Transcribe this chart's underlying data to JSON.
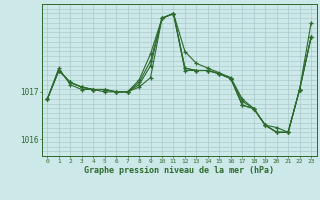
{
  "bg_color": "#cce8e8",
  "grid_color": "#aacccc",
  "line_color": "#2d6a2d",
  "marker_color": "#2d6a2d",
  "xlabel": "Graphe pression niveau de la mer (hPa)",
  "xlabel_color": "#2d6a2d",
  "tick_color": "#2d6a2d",
  "axis_color": "#2d6a2d",
  "xmin": -0.5,
  "xmax": 23.5,
  "ymin": 1015.65,
  "ymax": 1018.85,
  "yticks": [
    1016,
    1017
  ],
  "xticks": [
    0,
    1,
    2,
    3,
    4,
    5,
    6,
    7,
    8,
    9,
    10,
    11,
    12,
    13,
    14,
    15,
    16,
    17,
    18,
    19,
    20,
    21,
    22,
    23
  ],
  "lines": [
    {
      "x": [
        0,
        1,
        2,
        3,
        4,
        5,
        6,
        7,
        8,
        9,
        10,
        11,
        12,
        13,
        14,
        15,
        16,
        17,
        18,
        19,
        20,
        21,
        22,
        23
      ],
      "y": [
        1016.85,
        1017.45,
        1017.2,
        1017.1,
        1017.05,
        1017.05,
        1017.0,
        1017.0,
        1017.15,
        1017.55,
        1018.55,
        1018.65,
        1017.5,
        1017.45,
        1017.45,
        1017.38,
        1017.28,
        1016.72,
        1016.65,
        1016.3,
        1016.15,
        1016.15,
        1017.05,
        1018.15
      ]
    },
    {
      "x": [
        0,
        1,
        2,
        3,
        4,
        5,
        6,
        7,
        8,
        9,
        10,
        11,
        12,
        13,
        14,
        15,
        16,
        17,
        18,
        19,
        20,
        21,
        22,
        23
      ],
      "y": [
        1016.85,
        1017.45,
        1017.2,
        1017.1,
        1017.05,
        1017.05,
        1017.0,
        1017.0,
        1017.2,
        1017.65,
        1018.55,
        1018.65,
        1017.85,
        1017.6,
        1017.5,
        1017.4,
        1017.3,
        1016.85,
        1016.65,
        1016.3,
        1016.25,
        1016.15,
        1017.05,
        1018.45
      ]
    },
    {
      "x": [
        0,
        1,
        2,
        3,
        4,
        5,
        6,
        7,
        8,
        9,
        10,
        11,
        12,
        13,
        14,
        15,
        16,
        17,
        18,
        19,
        20,
        21,
        22,
        23
      ],
      "y": [
        1016.85,
        1017.5,
        1017.15,
        1017.05,
        1017.05,
        1017.0,
        1017.0,
        1017.0,
        1017.1,
        1017.3,
        1018.55,
        1018.65,
        1017.45,
        1017.45,
        1017.45,
        1017.38,
        1017.28,
        1016.8,
        1016.65,
        1016.3,
        1016.15,
        1016.15,
        1017.05,
        1018.15
      ]
    },
    {
      "x": [
        0,
        1,
        2,
        3,
        4,
        5,
        6,
        7,
        8,
        9,
        10,
        11,
        12,
        13,
        14,
        15,
        16,
        17,
        18,
        19,
        20,
        21,
        22,
        23
      ],
      "y": [
        1016.85,
        1017.45,
        1017.2,
        1017.1,
        1017.05,
        1017.05,
        1017.0,
        1017.0,
        1017.25,
        1017.8,
        1018.55,
        1018.65,
        1017.5,
        1017.45,
        1017.45,
        1017.38,
        1017.28,
        1016.72,
        1016.65,
        1016.3,
        1016.15,
        1016.15,
        1017.05,
        1018.15
      ]
    }
  ]
}
